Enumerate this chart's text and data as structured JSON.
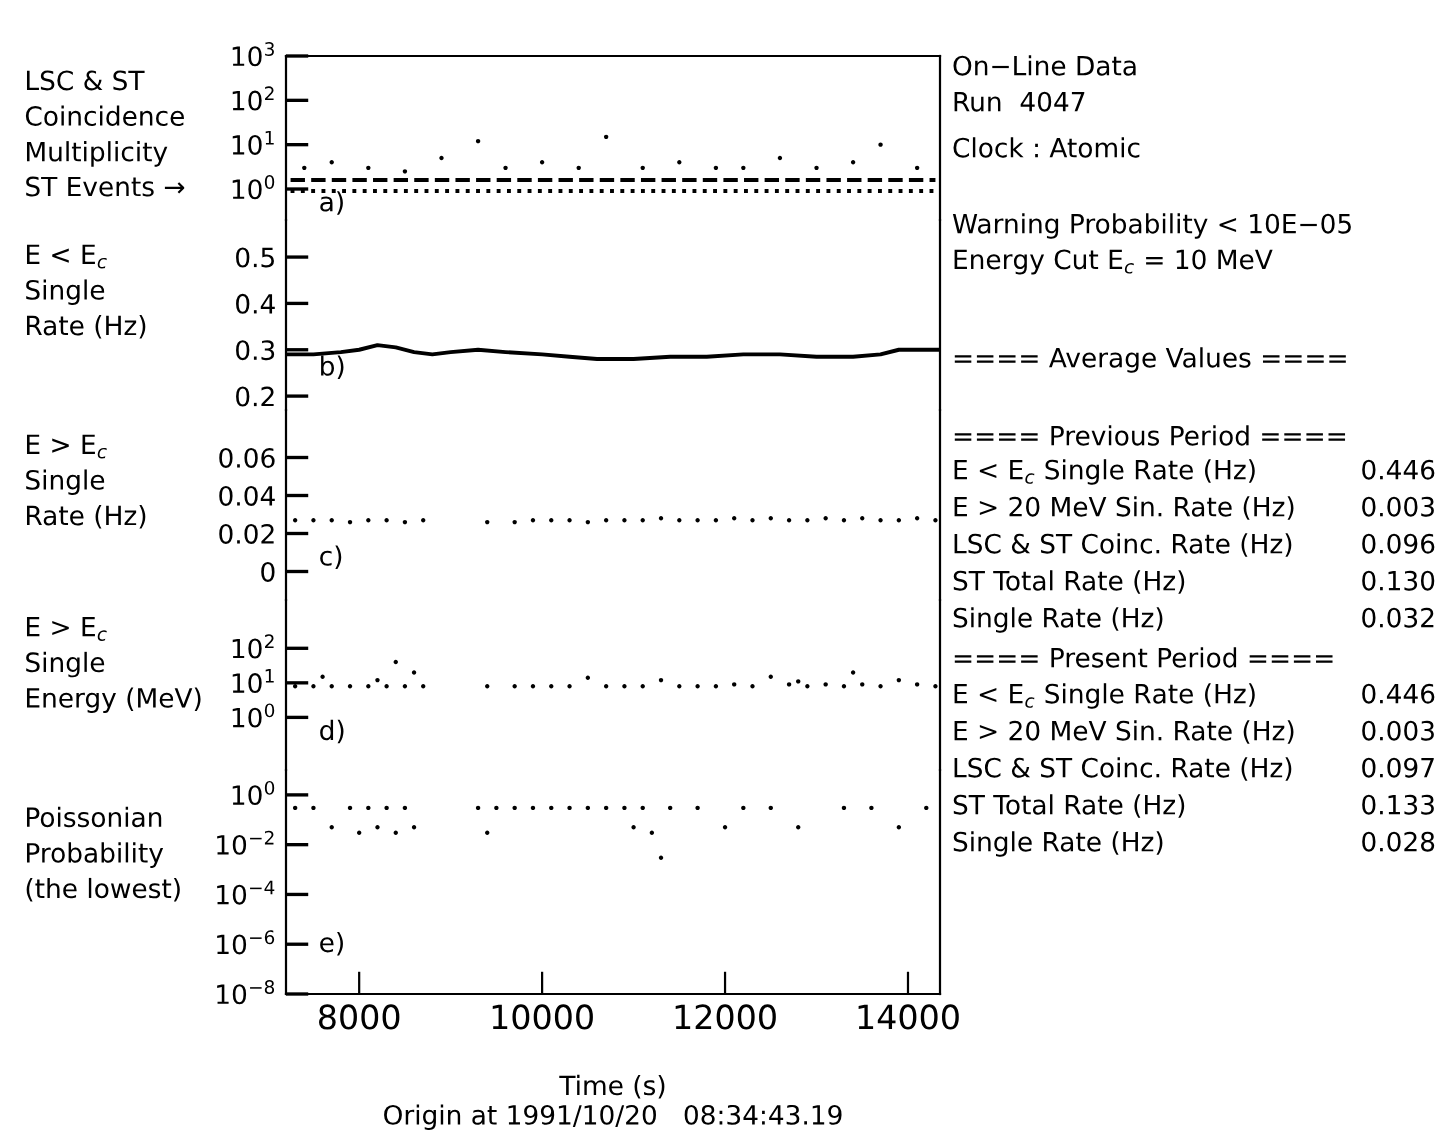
{
  "chart_data": [
    {
      "type": "scatter",
      "ylabel": "LSC & ST\nCoincidence\nMultiplicity",
      "log": true,
      "xlim": [
        7200,
        14350
      ],
      "ylim": [
        0.2,
        1000
      ],
      "tick_labels": "y",
      "yticks": [
        {
          "value": 1,
          "label": "10$^{0}$"
        },
        {
          "value": 10,
          "label": "10$^{1}$"
        },
        {
          "value": 100,
          "label": "10$^{2}$"
        },
        {
          "value": 1000,
          "label": "10$^{3}$"
        }
      ],
      "annotations": [
        "ST Events →",
        "a)"
      ],
      "series": [
        {
          "type": "scatter",
          "marker": "circle",
          "color": "#000000",
          "x": [
            7400,
            7700,
            8100,
            8500,
            8900,
            9300,
            9600,
            10000,
            10400,
            10700,
            11100,
            11500,
            11900,
            12200,
            12600,
            13000,
            13400,
            13700,
            14100
          ],
          "values": [
            3,
            4,
            3,
            2.5,
            5,
            12,
            3,
            4,
            3,
            15,
            3,
            4,
            3,
            3,
            5,
            3,
            4,
            10,
            3
          ]
        },
        {
          "type": "line",
          "marker": "none",
          "line_style": "dashed",
          "color": "#000000",
          "x": [
            7250,
            9000,
            11000,
            13000,
            14300
          ],
          "values": [
            1.6,
            1.6,
            1.6,
            1.6,
            1.6
          ]
        },
        {
          "type": "line",
          "marker": "none",
          "line_style": "dotted",
          "color": "#000000",
          "x": [
            7250,
            9000,
            11000,
            13000,
            14300
          ],
          "values": [
            0.9,
            0.9,
            0.9,
            0.9,
            0.9
          ]
        }
      ]
    },
    {
      "type": "line",
      "ylabel": "E < E$_{c}$\nSingle\nRate (Hz)",
      "xlim": [
        7200,
        14350
      ],
      "ylim": [
        0.17,
        0.58
      ],
      "tick_labels": "y",
      "yticks": [
        0.2,
        0.3,
        0.4,
        0.5
      ],
      "annotations": [
        "b)"
      ],
      "series": [
        {
          "color": "#000000",
          "line_style": "solid",
          "x": [
            7200,
            7500,
            7800,
            8000,
            8200,
            8400,
            8600,
            8800,
            9000,
            9300,
            9600,
            10000,
            10300,
            10600,
            11000,
            11400,
            11800,
            12200,
            12600,
            13000,
            13400,
            13700,
            13900,
            14100,
            14350
          ],
          "values": [
            0.29,
            0.29,
            0.295,
            0.3,
            0.31,
            0.305,
            0.295,
            0.29,
            0.295,
            0.3,
            0.295,
            0.29,
            0.285,
            0.28,
            0.28,
            0.285,
            0.285,
            0.29,
            0.29,
            0.285,
            0.285,
            0.29,
            0.3,
            0.3,
            0.3
          ]
        }
      ]
    },
    {
      "type": "scatter",
      "ylabel": "E > E$_{c}$\nSingle\nRate (Hz)",
      "xlim": [
        7200,
        14350
      ],
      "ylim": [
        -0.015,
        0.085
      ],
      "tick_labels": "y",
      "yticks": [
        0,
        0.02,
        0.04,
        0.06
      ],
      "annotations": [
        "c)"
      ],
      "series": [
        {
          "color": "#000000",
          "marker": "circle",
          "x": [
            7300,
            7500,
            7700,
            7900,
            8100,
            8300,
            8500,
            8700,
            9400,
            9700,
            9900,
            10100,
            10300,
            10500,
            10700,
            10900,
            11100,
            11300,
            11500,
            11700,
            11900,
            12100,
            12300,
            12500,
            12700,
            12900,
            13100,
            13300,
            13500,
            13700,
            13900,
            14100,
            14300
          ],
          "values": [
            0.027,
            0.027,
            0.027,
            0.026,
            0.027,
            0.027,
            0.026,
            0.027,
            0.026,
            0.026,
            0.027,
            0.027,
            0.027,
            0.026,
            0.027,
            0.027,
            0.027,
            0.028,
            0.027,
            0.027,
            0.027,
            0.028,
            0.027,
            0.028,
            0.027,
            0.027,
            0.028,
            0.027,
            0.028,
            0.027,
            0.027,
            0.028,
            0.027
          ]
        }
      ]
    },
    {
      "type": "scatter",
      "ylabel": "E > E$_{c}$\nSingle\nEnergy (MeV)",
      "log": true,
      "xlim": [
        7200,
        14350
      ],
      "ylim": [
        0.03,
        2500
      ],
      "tick_labels": "y",
      "yticks": [
        {
          "value": 1,
          "label": "10$^{0}$"
        },
        {
          "value": 10,
          "label": "10$^{1}$"
        },
        {
          "value": 100,
          "label": "10$^{2}$"
        }
      ],
      "annotations": [
        "d)"
      ],
      "series": [
        {
          "color": "#000000",
          "marker": "circle",
          "x": [
            7300,
            7500,
            7600,
            7700,
            7900,
            8100,
            8200,
            8300,
            8400,
            8500,
            8600,
            8700,
            9400,
            9700,
            9900,
            10100,
            10300,
            10500,
            10700,
            10900,
            11100,
            11300,
            11500,
            11700,
            11900,
            12100,
            12300,
            12500,
            12700,
            12800,
            12900,
            13100,
            13300,
            13400,
            13500,
            13700,
            13900,
            14100,
            14300
          ],
          "values": [
            8,
            8,
            15,
            8,
            8,
            8,
            12,
            8,
            40,
            8,
            20,
            8,
            8,
            8,
            8,
            8,
            8,
            14,
            8,
            8,
            8,
            12,
            8,
            8,
            8,
            9,
            8,
            15,
            9,
            11,
            8,
            9,
            8,
            20,
            9,
            8,
            12,
            9,
            8
          ]
        }
      ]
    },
    {
      "type": "scatter",
      "ylabel": "Poissonian\nProbability\n(the lowest)",
      "log": true,
      "xlim": [
        7200,
        14350
      ],
      "ylim": [
        1e-08,
        10
      ],
      "xlabel": "Time (s)",
      "xticks": [
        8000,
        10000,
        12000,
        14000
      ],
      "yticks": [
        {
          "value": 1e-08,
          "label": "10$^{−8}$"
        },
        {
          "value": 1e-06,
          "label": "10$^{−6}$"
        },
        {
          "value": 0.0001,
          "label": "10$^{−4}$"
        },
        {
          "value": 0.01,
          "label": "10$^{−2}$"
        },
        {
          "value": 1,
          "label": "10$^{0}$"
        }
      ],
      "annotations": [
        "e)",
        "Origin at 1991/10/20   08:34:43.19"
      ],
      "series": [
        {
          "color": "#000000",
          "marker": "circle",
          "x": [
            7300,
            7500,
            7700,
            7900,
            8000,
            8100,
            8200,
            8300,
            8400,
            8500,
            8600,
            9300,
            9400,
            9500,
            9700,
            9900,
            10100,
            10300,
            10500,
            10700,
            10900,
            11000,
            11100,
            11200,
            11300,
            11400,
            11700,
            12000,
            12200,
            12500,
            12800,
            13300,
            13600,
            13900,
            14200
          ],
          "values": [
            0.3,
            0.3,
            0.05,
            0.3,
            0.03,
            0.3,
            0.05,
            0.3,
            0.03,
            0.3,
            0.05,
            0.3,
            0.03,
            0.3,
            0.3,
            0.3,
            0.3,
            0.3,
            0.3,
            0.3,
            0.3,
            0.05,
            0.3,
            0.03,
            0.003,
            0.3,
            0.3,
            0.05,
            0.3,
            0.3,
            0.05,
            0.3,
            0.3,
            0.05,
            0.3
          ]
        }
      ]
    },
    {
      "type": "other",
      "annotations": [
        "On−Line Data",
        "Run  4047",
        "Clock : Atomic",
        "Warning Probability < 10E−05",
        "Energy Cut E$_{c}$ = 10 MeV",
        "==== Average Values ====",
        "==== Previous Period ====",
        "E < E$_{c}$ Single Rate (Hz)",
        "0.446",
        "E > 20 MeV Sin. Rate (Hz)",
        "0.003",
        "LSC & ST Coinc. Rate (Hz)",
        "0.096",
        "ST Total Rate (Hz)",
        "0.130",
        "Single Rate (Hz)",
        "0.032",
        "==== Present Period ====",
        "E < E$_{c}$ Single Rate (Hz)",
        "0.446",
        "E > 20 MeV Sin. Rate (Hz)",
        "0.003",
        "LSC & ST Coinc. Rate (Hz)",
        "0.097",
        "ST Total Rate (Hz)",
        "0.133",
        "Single Rate (Hz)",
        "0.028"
      ]
    }
  ]
}
